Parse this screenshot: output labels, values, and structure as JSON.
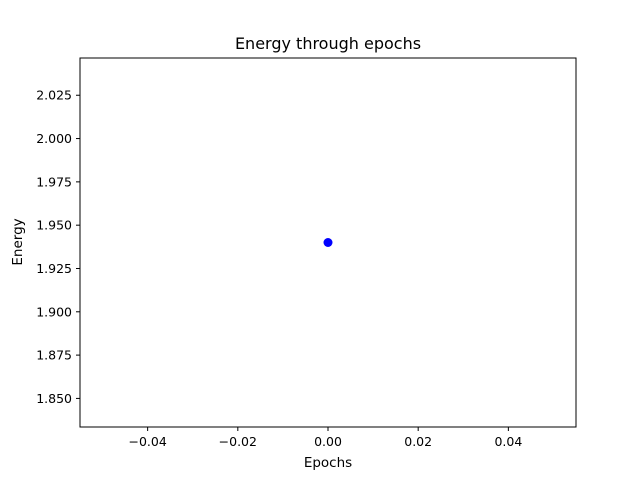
{
  "chart_data": {
    "type": "scatter",
    "title": "Energy through epochs",
    "xlabel": "Epochs",
    "ylabel": "Energy",
    "x": [
      0.0
    ],
    "y": [
      1.94
    ],
    "xlim": [
      -0.055,
      0.055
    ],
    "ylim": [
      1.8335,
      2.0465
    ],
    "xticks": [
      -0.04,
      -0.02,
      0.0,
      0.02,
      0.04
    ],
    "xtick_labels": [
      "−0.04",
      "−0.02",
      "0.00",
      "0.02",
      "0.04"
    ],
    "yticks": [
      1.85,
      1.875,
      1.9,
      1.925,
      1.95,
      1.975,
      2.0,
      2.025
    ],
    "ytick_labels": [
      "1.850",
      "1.875",
      "1.900",
      "1.925",
      "1.950",
      "1.975",
      "2.000",
      "2.025"
    ],
    "marker_color": "#0000ff",
    "grid": false
  }
}
